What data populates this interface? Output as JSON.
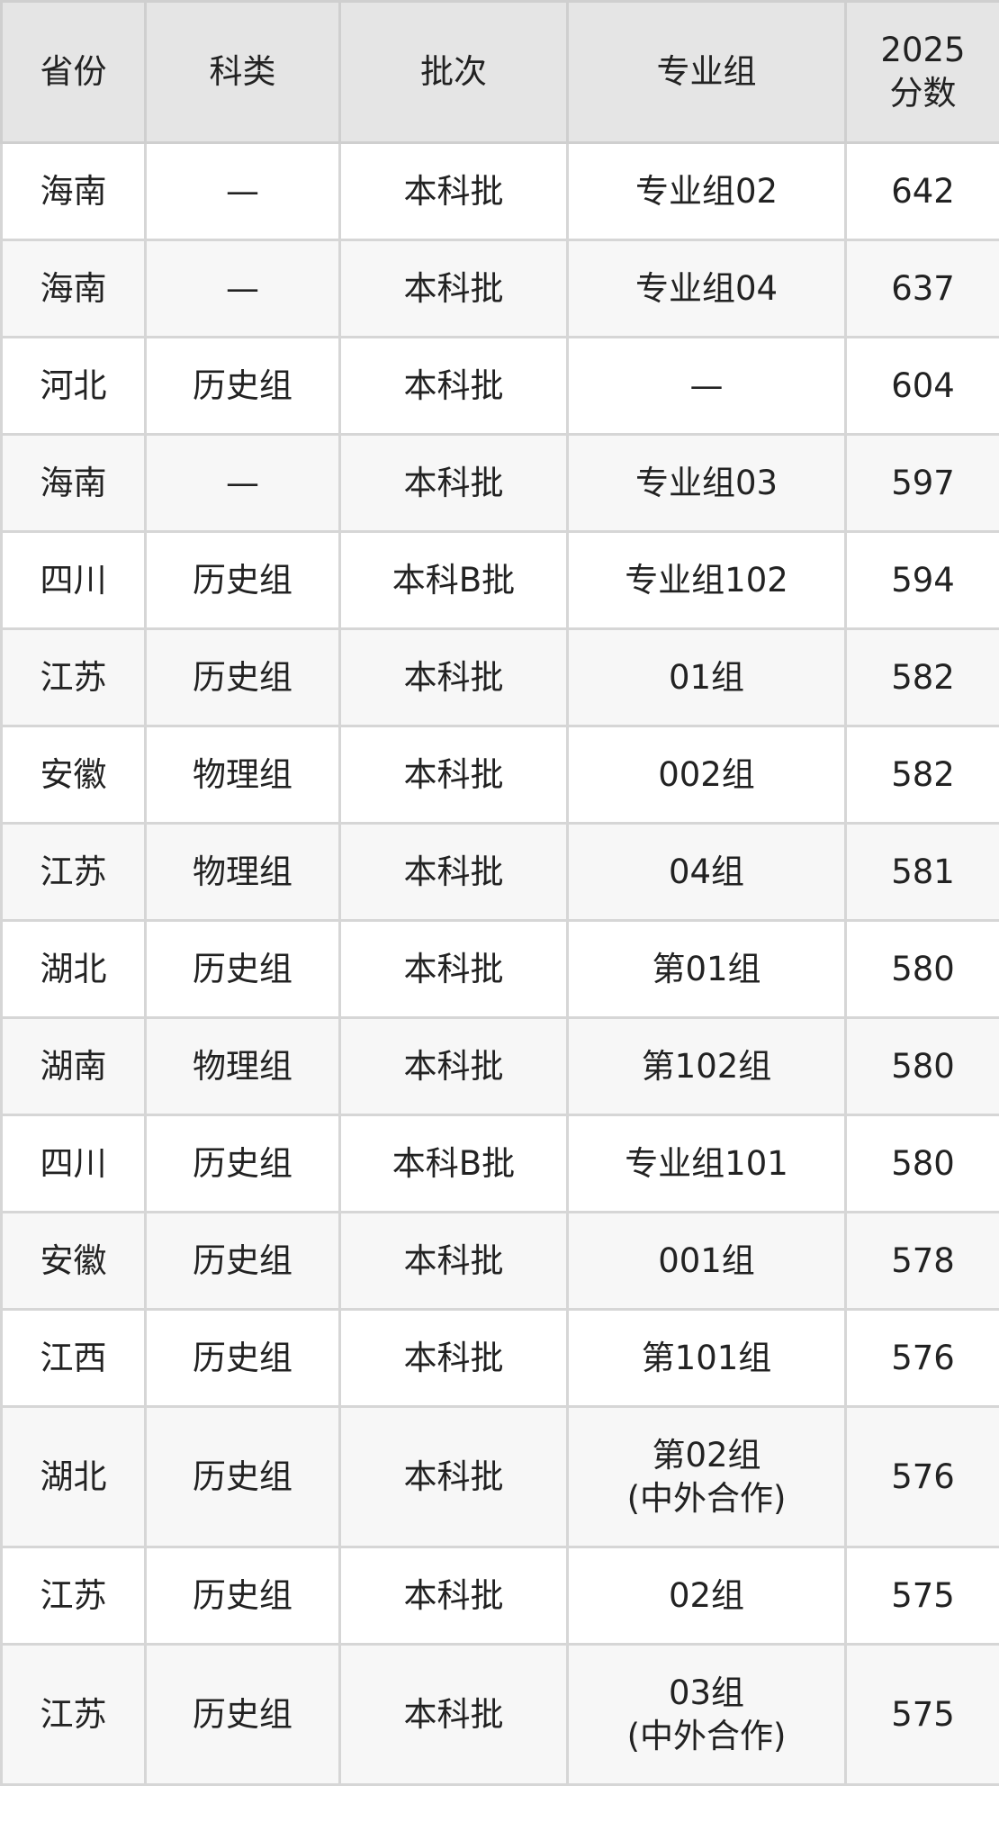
{
  "table": {
    "headers": [
      "省份",
      "科类",
      "批次",
      "专业组",
      "2025\n分数"
    ],
    "rows": [
      [
        "海南",
        "—",
        "本科批",
        "专业组02",
        "642"
      ],
      [
        "海南",
        "—",
        "本科批",
        "专业组04",
        "637"
      ],
      [
        "河北",
        "历史组",
        "本科批",
        "—",
        "604"
      ],
      [
        "海南",
        "—",
        "本科批",
        "专业组03",
        "597"
      ],
      [
        "四川",
        "历史组",
        "本科B批",
        "专业组102",
        "594"
      ],
      [
        "江苏",
        "历史组",
        "本科批",
        "01组",
        "582"
      ],
      [
        "安徽",
        "物理组",
        "本科批",
        "002组",
        "582"
      ],
      [
        "江苏",
        "物理组",
        "本科批",
        "04组",
        "581"
      ],
      [
        "湖北",
        "历史组",
        "本科批",
        "第01组",
        "580"
      ],
      [
        "湖南",
        "物理组",
        "本科批",
        "第102组",
        "580"
      ],
      [
        "四川",
        "历史组",
        "本科B批",
        "专业组101",
        "580"
      ],
      [
        "安徽",
        "历史组",
        "本科批",
        "001组",
        "578"
      ],
      [
        "江西",
        "历史组",
        "本科批",
        "第101组",
        "576"
      ],
      [
        "湖北",
        "历史组",
        "本科批",
        "第02组\n(中外合作)",
        "576"
      ],
      [
        "江苏",
        "历史组",
        "本科批",
        "02组",
        "575"
      ],
      [
        "江苏",
        "历史组",
        "本科批",
        "03组\n(中外合作)",
        "575"
      ]
    ]
  }
}
